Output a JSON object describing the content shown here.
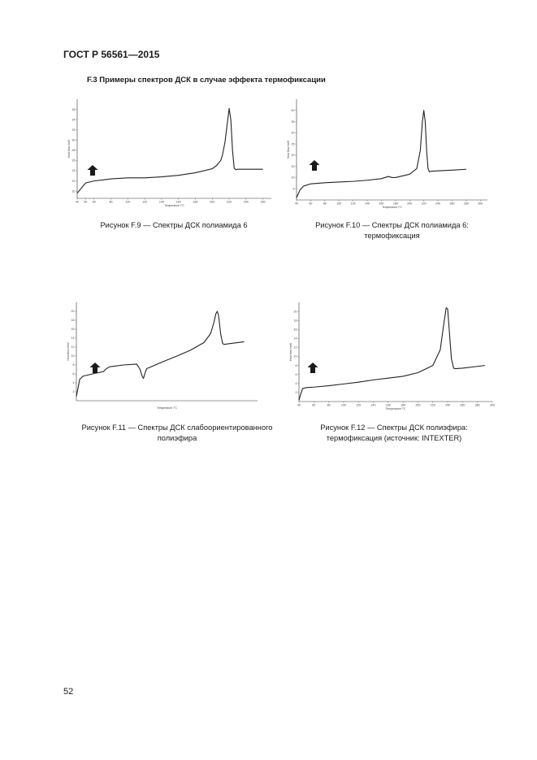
{
  "header": {
    "doc_id": "ГОСТ Р 56561—2015"
  },
  "section": {
    "title": "F.3 Примеры спектров ДСК в случае эффекта термофиксации"
  },
  "figures": [
    {
      "caption_lines": [
        "Рисунок F.9 — Спектры ДСК полиамида 6"
      ]
    },
    {
      "caption_lines": [
        "Рисунок F.10 — Спектры ДСК полиамида 6:",
        "термофиксация"
      ]
    },
    {
      "caption_lines": [
        "Рисунок F.11 — Спектры ДСК слабоориентированного",
        "полиэфира"
      ]
    },
    {
      "caption_lines": [
        "Рисунок  F.12 — Спектры ДСК полиэфира:",
        "термофиксация (источник: INTEXTER)"
      ]
    }
  ],
  "chart_data": [
    {
      "type": "line",
      "xlabel": "Temperature /°C",
      "ylabel": "Heat flow /mW",
      "x": [
        40,
        50,
        60,
        80,
        100,
        120,
        140,
        160,
        180,
        200,
        205,
        210,
        212,
        215,
        218,
        220,
        222,
        224,
        226,
        228,
        230,
        235,
        240,
        250,
        260
      ],
      "y": [
        19.6,
        21.6,
        22.0,
        22.4,
        22.6,
        22.6,
        22.8,
        23.1,
        23.6,
        24.4,
        25.0,
        26.0,
        27.0,
        29.5,
        33.5,
        36.2,
        34.0,
        28.0,
        24.5,
        24.2,
        24.3,
        24.3,
        24.3,
        24.3,
        24.3
      ],
      "xlim": [
        40,
        270
      ],
      "ylim": [
        18.6,
        38
      ],
      "x_ticks": [
        40,
        50,
        60,
        80,
        100,
        120,
        140,
        160,
        180,
        200,
        220,
        240,
        260
      ],
      "y_ticks": [
        20,
        22,
        24,
        26,
        28,
        30,
        32,
        34,
        36
      ]
    },
    {
      "type": "line",
      "xlabel": "Temperature /°C",
      "ylabel": "Heat flow /mW",
      "x": [
        40,
        45,
        50,
        60,
        80,
        100,
        120,
        140,
        160,
        170,
        175,
        180,
        200,
        210,
        215,
        218,
        220,
        222,
        224,
        226,
        228,
        230,
        240,
        260,
        280
      ],
      "y": [
        1.0,
        4.5,
        6.2,
        7.2,
        7.7,
        8.0,
        8.3,
        8.8,
        9.5,
        10.5,
        10.0,
        10.0,
        11.5,
        14.0,
        22.0,
        35.0,
        40.0,
        35.0,
        22.0,
        14.0,
        12.5,
        12.8,
        13.0,
        13.3,
        13.7
      ],
      "xlim": [
        40,
        310
      ],
      "ylim": [
        0,
        45
      ],
      "x_ticks": [
        40,
        60,
        80,
        100,
        120,
        140,
        160,
        180,
        200,
        220,
        240,
        260,
        280,
        300
      ],
      "y_ticks": [
        5,
        10,
        15,
        20,
        25,
        30,
        35,
        40
      ]
    },
    {
      "type": "line",
      "xlabel": "Temperature /°C",
      "ylabel": "Heat flow /mW",
      "x": [
        30,
        32,
        35,
        40,
        60,
        70,
        75,
        80,
        100,
        120,
        125,
        128,
        130,
        133,
        135,
        140,
        160,
        180,
        200,
        220,
        230,
        235,
        238,
        240,
        242,
        245,
        248,
        250,
        260,
        280
      ],
      "y": [
        1.0,
        2.5,
        4.8,
        5.5,
        6.2,
        6.5,
        7.2,
        7.6,
        8.0,
        8.2,
        7.0,
        5.5,
        5.0,
        6.5,
        7.2,
        7.5,
        8.8,
        10.0,
        11.3,
        13.0,
        15.0,
        17.5,
        19.5,
        20.0,
        19.0,
        15.0,
        12.8,
        12.6,
        12.8,
        13.2
      ],
      "xlim": [
        30,
        300
      ],
      "ylim": [
        0,
        22
      ],
      "y_ticks": [
        2,
        4,
        6,
        8,
        10,
        12,
        14,
        16,
        18,
        20
      ]
    },
    {
      "type": "line",
      "xlabel": "Temperature /°C",
      "ylabel": "Heat flow /mW",
      "x": [
        40,
        42,
        45,
        50,
        60,
        80,
        100,
        120,
        140,
        160,
        180,
        200,
        220,
        230,
        235,
        238,
        240,
        242,
        245,
        248,
        250,
        260,
        280,
        290
      ],
      "y": [
        0.3,
        1.5,
        2.9,
        3.1,
        3.2,
        3.5,
        3.9,
        4.3,
        4.8,
        5.2,
        5.6,
        6.4,
        8.0,
        11.5,
        17.5,
        20.8,
        20.5,
        16.0,
        9.5,
        7.4,
        7.3,
        7.4,
        7.8,
        8.0
      ],
      "xlim": [
        40,
        300
      ],
      "ylim": [
        0,
        22
      ],
      "x_ticks": [
        40,
        60,
        80,
        100,
        120,
        140,
        160,
        180,
        200,
        220,
        240,
        260,
        280,
        300
      ],
      "y_ticks": [
        2,
        4,
        6,
        8,
        10,
        12,
        14,
        16,
        18,
        20
      ]
    }
  ],
  "page": {
    "number": "52"
  }
}
